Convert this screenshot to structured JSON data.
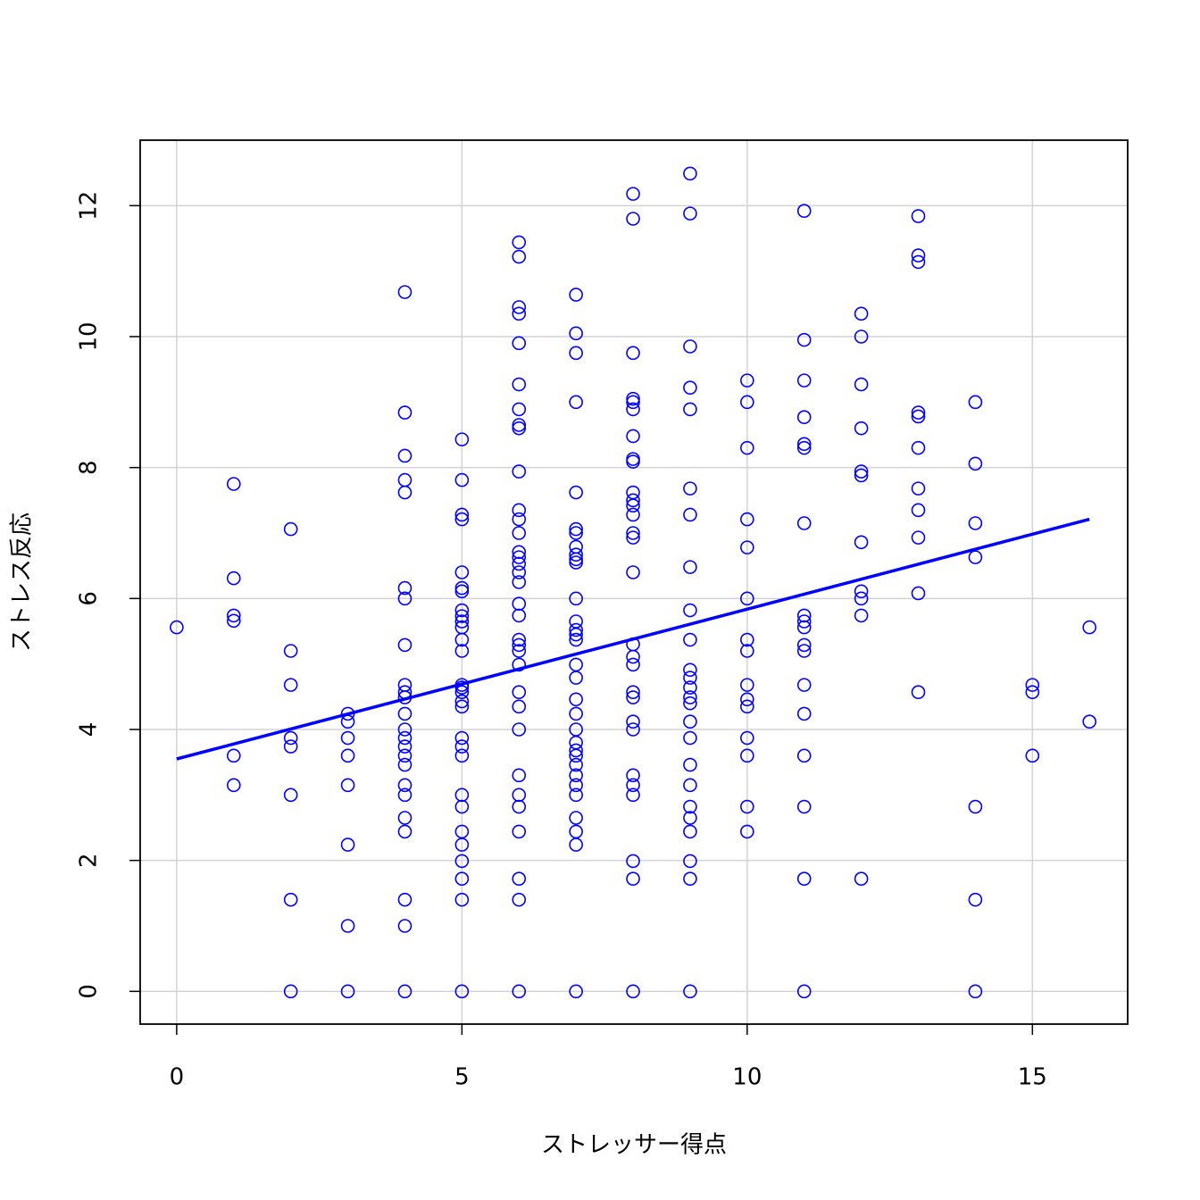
{
  "chart_data": {
    "type": "scatter",
    "xlabel": "ストレッサー得点",
    "ylabel": "ストレス反応",
    "xlim": [
      -0.64,
      16.67
    ],
    "ylim": [
      -0.5,
      13.0
    ],
    "xticks": [
      0,
      5,
      10,
      15
    ],
    "yticks": [
      0,
      2,
      4,
      6,
      8,
      10,
      12
    ],
    "grid": true,
    "series": [
      {
        "type": "scatter",
        "color": "#0000ff",
        "x": [
          0,
          1,
          1,
          1,
          1,
          1,
          1,
          2,
          2,
          2,
          2,
          2,
          2,
          2,
          2,
          3,
          3,
          3,
          3,
          3,
          3,
          3,
          3,
          4,
          4,
          4,
          4,
          4,
          4,
          4,
          4,
          4,
          4,
          4,
          4,
          4,
          4,
          4,
          4,
          4,
          4,
          4,
          4,
          4,
          4,
          4,
          4,
          5,
          5,
          5,
          5,
          5,
          5,
          5,
          5,
          5,
          5,
          5,
          5,
          5,
          5,
          5,
          5,
          5,
          5,
          5,
          5,
          5,
          5,
          5,
          5,
          5,
          5,
          5,
          5,
          5,
          6,
          6,
          6,
          6,
          6,
          6,
          6,
          6,
          6,
          6,
          6,
          6,
          6,
          6,
          6,
          6,
          6,
          6,
          6,
          6,
          6,
          6,
          6,
          6,
          6,
          6,
          6,
          6,
          6,
          6,
          6,
          6,
          6,
          6,
          7,
          7,
          7,
          7,
          7,
          7,
          7,
          7,
          7,
          7,
          7,
          7,
          7,
          7,
          7,
          7,
          7,
          7,
          7,
          7,
          7,
          7,
          7,
          7,
          7,
          7,
          7,
          7,
          7,
          7,
          7,
          7,
          8,
          8,
          8,
          8,
          8,
          8,
          8,
          8,
          8,
          8,
          8,
          8,
          8,
          8,
          8,
          8,
          8,
          8,
          8,
          8,
          8,
          8,
          8,
          8,
          8,
          8,
          8,
          8,
          8,
          9,
          9,
          9,
          9,
          9,
          9,
          9,
          9,
          9,
          9,
          9,
          9,
          9,
          9,
          9,
          9,
          9,
          9,
          9,
          9,
          9,
          9,
          9,
          9,
          9,
          10,
          10,
          10,
          10,
          10,
          10,
          10,
          10,
          10,
          10,
          10,
          10,
          10,
          10,
          10,
          11,
          11,
          11,
          11,
          11,
          11,
          11,
          11,
          11,
          11,
          11,
          11,
          11,
          11,
          11,
          11,
          11,
          11,
          12,
          12,
          12,
          12,
          12,
          12,
          12,
          12,
          12,
          12,
          12,
          13,
          13,
          13,
          13,
          13,
          13,
          13,
          13,
          13,
          13,
          13,
          14,
          14,
          14,
          14,
          14,
          14,
          14,
          15,
          15,
          15,
          16,
          16
        ],
        "values": [
          5.56,
          7.75,
          6.31,
          5.74,
          5.66,
          3.6,
          3.15,
          7.06,
          5.2,
          4.68,
          3.87,
          3.74,
          3.0,
          1.4,
          0,
          4.24,
          4.12,
          3.87,
          3.6,
          3.15,
          2.24,
          1.0,
          0,
          10.68,
          8.84,
          8.18,
          7.81,
          7.62,
          6.16,
          6.0,
          5.29,
          4.68,
          4.57,
          4.49,
          4.24,
          4.0,
          3.87,
          3.74,
          3.6,
          3.46,
          3.15,
          3.0,
          2.65,
          2.44,
          1.4,
          1.0,
          0,
          8.43,
          7.81,
          7.28,
          7.21,
          6.4,
          6.16,
          6.11,
          5.82,
          5.73,
          5.65,
          5.56,
          5.37,
          5.2,
          4.68,
          4.64,
          4.57,
          4.43,
          4.35,
          3.87,
          3.74,
          3.6,
          3.0,
          2.82,
          2.44,
          2.24,
          1.99,
          1.72,
          1.4,
          0,
          11.44,
          11.22,
          10.45,
          10.35,
          9.9,
          9.27,
          8.89,
          8.65,
          8.6,
          7.94,
          7.35,
          7.21,
          7.0,
          6.71,
          6.63,
          6.53,
          6.4,
          6.25,
          5.92,
          5.74,
          5.37,
          5.29,
          5.2,
          4.99,
          4.57,
          4.35,
          4.0,
          3.3,
          3.0,
          2.82,
          2.44,
          1.72,
          1.4,
          0,
          10.64,
          10.05,
          9.75,
          9.0,
          7.62,
          7.06,
          7.0,
          6.79,
          6.67,
          6.6,
          6.55,
          6.0,
          5.65,
          5.52,
          5.45,
          5.37,
          4.99,
          4.79,
          4.46,
          4.24,
          4.0,
          3.8,
          3.68,
          3.6,
          3.46,
          3.3,
          3.15,
          3.0,
          2.65,
          2.44,
          2.24,
          0,
          12.18,
          11.8,
          9.75,
          9.05,
          9.0,
          8.89,
          8.48,
          8.13,
          8.09,
          7.62,
          7.5,
          7.42,
          7.28,
          7.0,
          6.93,
          6.4,
          5.3,
          5.11,
          4.99,
          4.57,
          4.49,
          4.12,
          4.0,
          3.3,
          3.15,
          3.0,
          1.99,
          1.72,
          0,
          12.49,
          11.88,
          9.85,
          9.22,
          8.89,
          7.68,
          7.28,
          6.48,
          5.82,
          5.37,
          4.91,
          4.79,
          4.64,
          4.49,
          4.4,
          4.12,
          3.87,
          3.46,
          3.15,
          2.82,
          2.65,
          2.44,
          1.99,
          1.72,
          0,
          9.33,
          9.0,
          8.3,
          7.21,
          6.78,
          6.0,
          5.37,
          5.2,
          4.68,
          4.46,
          4.35,
          3.87,
          3.6,
          2.82,
          2.44,
          11.92,
          9.95,
          9.33,
          8.77,
          8.36,
          8.3,
          7.15,
          5.74,
          5.65,
          5.56,
          5.29,
          5.2,
          4.68,
          4.24,
          3.6,
          2.82,
          1.72,
          0,
          10.35,
          10.0,
          9.27,
          8.6,
          7.94,
          7.88,
          6.86,
          6.11,
          6.0,
          5.74,
          1.72,
          11.84,
          11.24,
          11.14,
          8.84,
          8.78,
          8.3,
          7.68,
          7.35,
          6.93,
          6.08,
          4.57,
          9.0,
          8.06,
          7.15,
          6.63,
          2.82,
          1.4,
          0,
          4.68,
          4.57,
          3.6,
          5.56,
          4.12
        ]
      },
      {
        "type": "line",
        "color": "#0000ff",
        "x": [
          0,
          16
        ],
        "values": [
          3.55,
          7.21
        ]
      }
    ]
  }
}
